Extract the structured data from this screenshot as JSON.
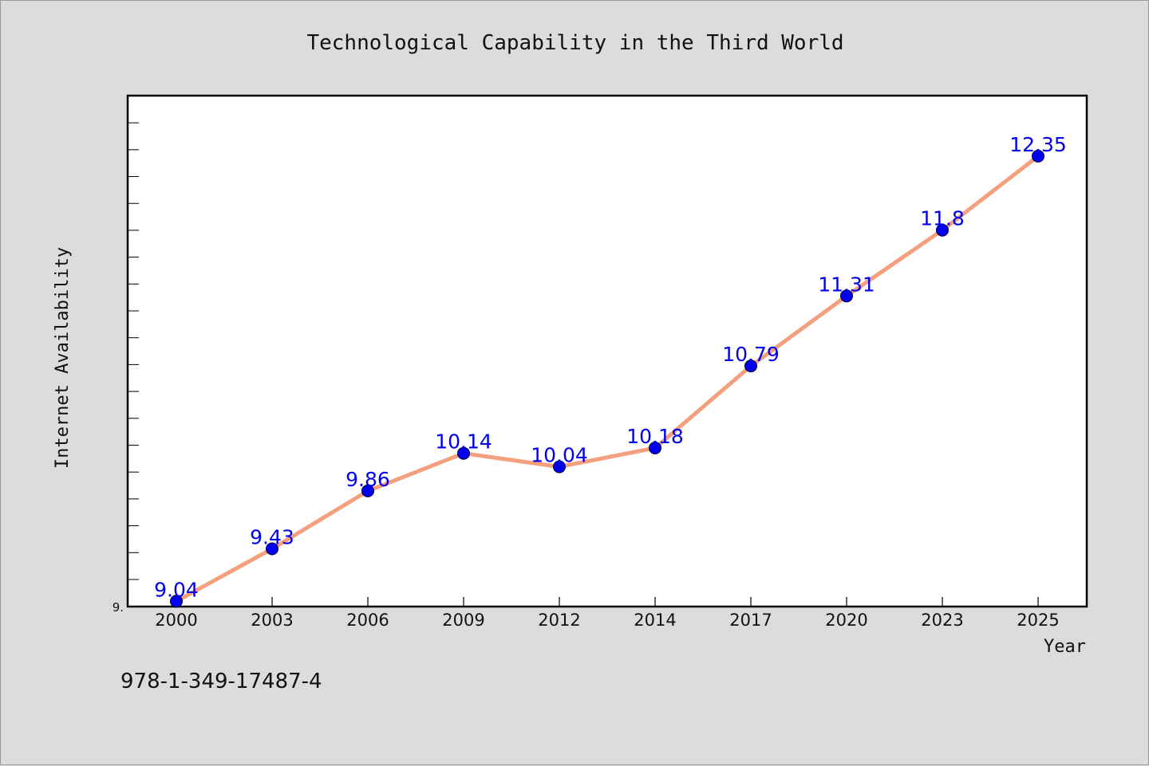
{
  "chart_data": {
    "type": "line",
    "title": "Technological Capability in the Third World",
    "xlabel": "Year",
    "ylabel": "Internet Availability",
    "categories": [
      "2000",
      "2003",
      "2006",
      "2009",
      "2012",
      "2014",
      "2017",
      "2020",
      "2023",
      "2025"
    ],
    "values": [
      9.04,
      9.43,
      9.86,
      10.14,
      10.04,
      10.18,
      10.79,
      11.31,
      11.8,
      12.35
    ],
    "data_labels": [
      "9.04",
      "9.43",
      "9.86",
      "10.14",
      "10.04",
      "10.18",
      "10.79",
      "11.31",
      "11.8",
      "12.35"
    ],
    "ytick_labels": [
      "9."
    ],
    "ylim": [
      9.0,
      12.8
    ],
    "grid": false,
    "legend": "none",
    "colors": {
      "line": "#f4a07e",
      "marker": "#0000ee",
      "data_label": "#0000ee",
      "plot_background": "#ffffff",
      "figure_background": "#dcdcdc"
    }
  },
  "footer": {
    "isbn": "978-1-349-17487-4"
  }
}
